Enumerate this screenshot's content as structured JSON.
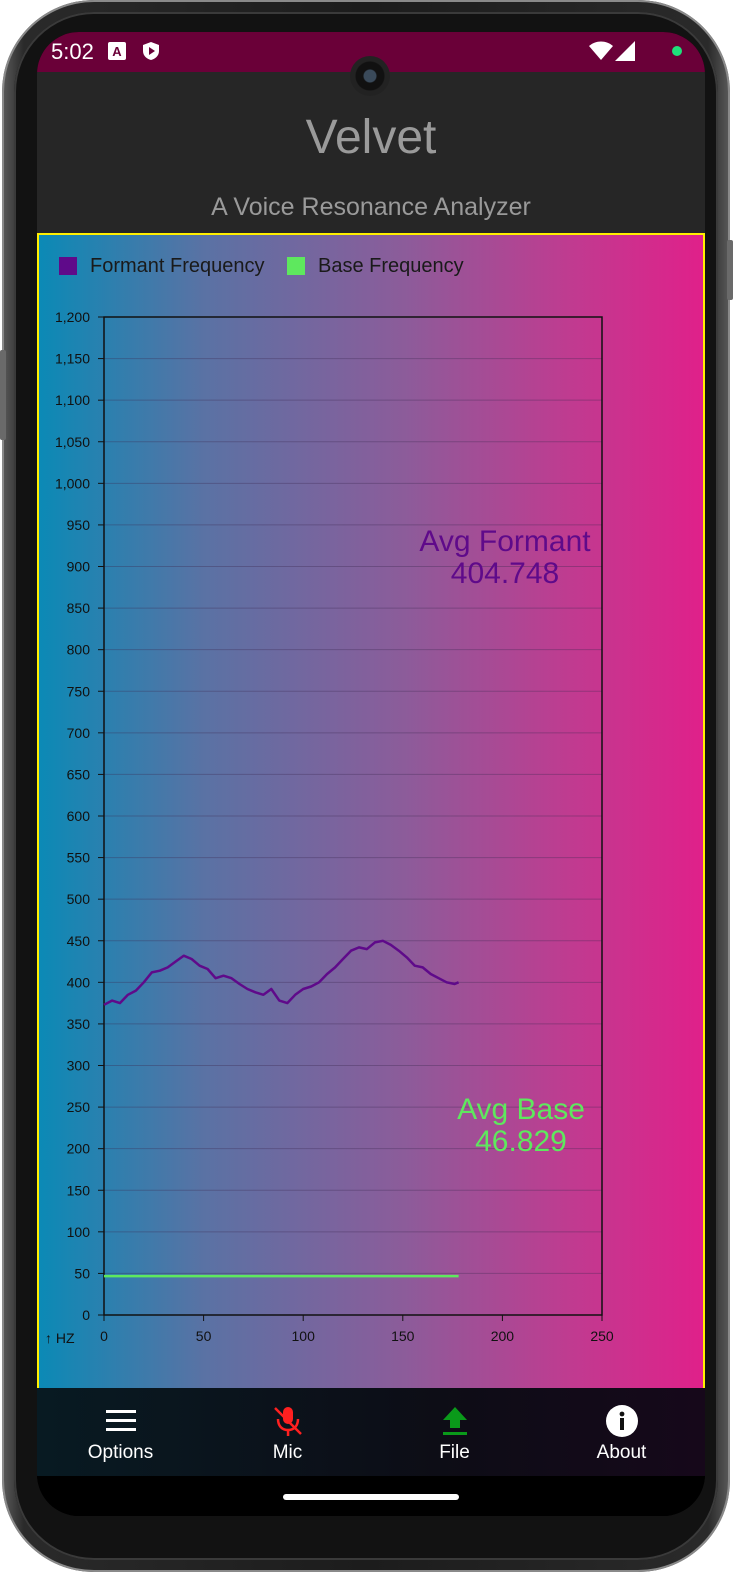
{
  "status_bar": {
    "time": "5:02",
    "icons": [
      "font-a-icon",
      "shield-play-icon",
      "wifi-icon",
      "signal-icon",
      "green-dot-icon"
    ],
    "background": "#6a0038"
  },
  "app_bar": {
    "title": "Velvet",
    "subtitle": "A Voice Resonance Analyzer"
  },
  "legend": [
    {
      "label": "Formant Frequency",
      "color": "#5f0a8a"
    },
    {
      "label": "Base Frequency",
      "color": "#5ee85e"
    }
  ],
  "annotations": {
    "avg_formant_label": "Avg Formant",
    "avg_formant_value": "404.748",
    "avg_base_label": "Avg Base",
    "avg_base_value": "46.829"
  },
  "chart_data": {
    "type": "line",
    "xlim": [
      0,
      250
    ],
    "ylim": [
      0,
      1200
    ],
    "x_ticks": [
      "0",
      "50",
      "100",
      "150",
      "200",
      "250"
    ],
    "y_ticks": [
      "0",
      "50",
      "100",
      "150",
      "200",
      "250",
      "300",
      "350",
      "400",
      "450",
      "500",
      "550",
      "600",
      "650",
      "700",
      "750",
      "800",
      "850",
      "900",
      "950",
      "1,000",
      "1,050",
      "1,100",
      "1,150",
      "1,200"
    ],
    "y_unit_label": "↑ HZ",
    "grid": true,
    "series": [
      {
        "name": "Formant Frequency",
        "color": "#5f0a8a",
        "x": [
          0,
          4,
          8,
          12,
          16,
          20,
          24,
          28,
          32,
          36,
          40,
          44,
          48,
          52,
          56,
          60,
          64,
          68,
          72,
          76,
          80,
          84,
          88,
          92,
          96,
          100,
          104,
          108,
          112,
          116,
          120,
          124,
          128,
          132,
          136,
          140,
          144,
          148,
          152,
          156,
          160,
          164,
          168,
          172,
          176,
          178
        ],
        "y": [
          373,
          378,
          375,
          385,
          390,
          400,
          412,
          414,
          418,
          425,
          432,
          428,
          420,
          416,
          405,
          408,
          405,
          398,
          392,
          388,
          385,
          392,
          378,
          375,
          385,
          392,
          395,
          400,
          410,
          418,
          428,
          438,
          442,
          440,
          448,
          450,
          445,
          438,
          430,
          420,
          418,
          410,
          405,
          400,
          398,
          400
        ]
      },
      {
        "name": "Base Frequency",
        "color": "#5ee85e",
        "x": [
          0,
          178
        ],
        "y": [
          46.8,
          46.8
        ]
      }
    ]
  },
  "bottom_nav": [
    {
      "label": "Options",
      "icon": "menu-icon",
      "color": "#ffffff"
    },
    {
      "label": "Mic",
      "icon": "mic-off-icon",
      "color": "#ff2020"
    },
    {
      "label": "File",
      "icon": "upload-icon",
      "color": "#0a9a1a"
    },
    {
      "label": "About",
      "icon": "info-icon",
      "color": "#ffffff"
    }
  ]
}
